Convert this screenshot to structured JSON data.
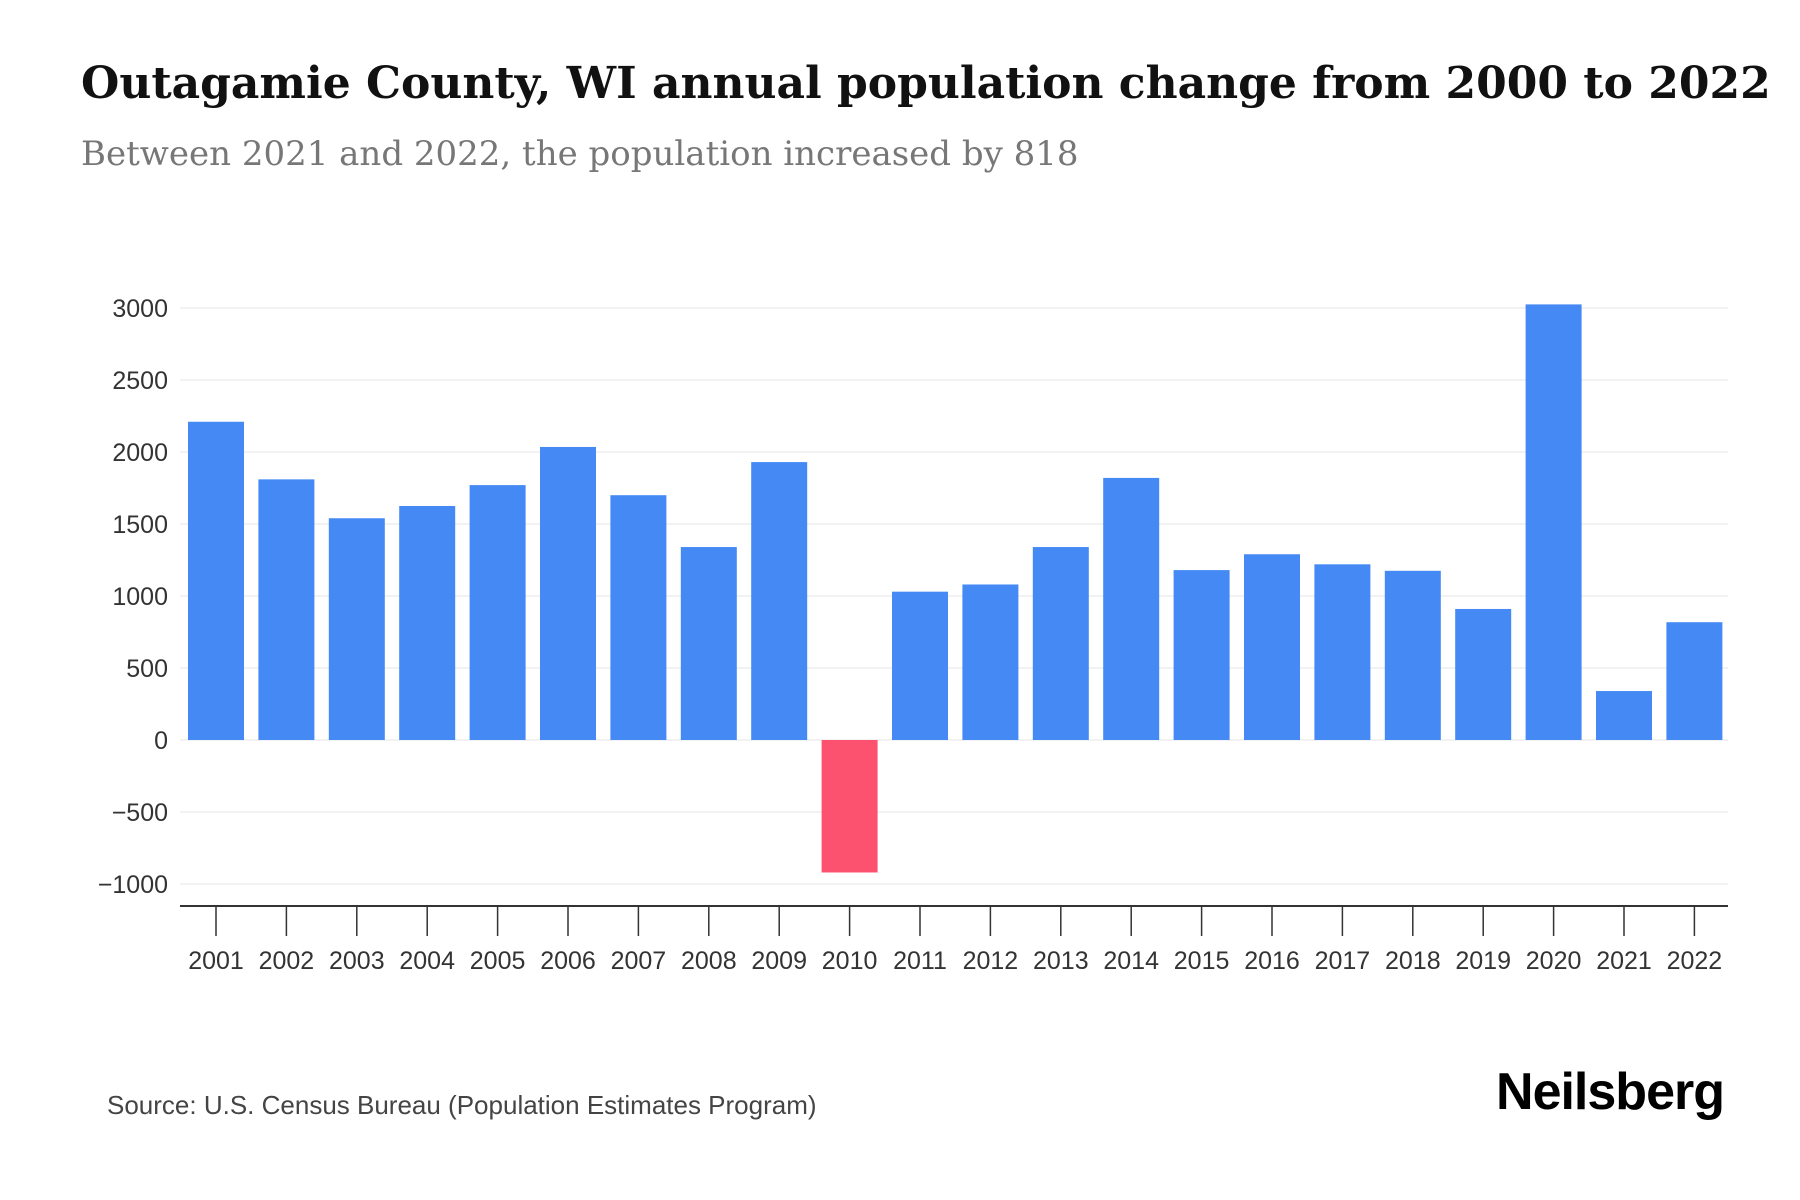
{
  "header": {
    "title": "Outagamie County, WI annual population change from 2000 to 2022",
    "subtitle": "Between 2021 and 2022, the population increased by 818"
  },
  "footer": {
    "source": "Source: U.S. Census Bureau (Population Estimates Program)",
    "brand": "Neilsberg"
  },
  "colors": {
    "positive": "#4589F4",
    "negative": "#FC5270",
    "grid": "#EEEEEE",
    "axis": "#333333",
    "tick_text": "#333333"
  },
  "chart_data": {
    "type": "bar",
    "title": "Outagamie County, WI annual population change from 2000 to 2022",
    "subtitle": "Between 2021 and 2022, the population increased by 818",
    "xlabel": "",
    "ylabel": "",
    "categories": [
      "2001",
      "2002",
      "2003",
      "2004",
      "2005",
      "2006",
      "2007",
      "2008",
      "2009",
      "2010",
      "2011",
      "2012",
      "2013",
      "2014",
      "2015",
      "2016",
      "2017",
      "2018",
      "2019",
      "2020",
      "2021",
      "2022"
    ],
    "values": [
      2210,
      1810,
      1540,
      1625,
      1770,
      2035,
      1700,
      1340,
      1930,
      -920,
      1030,
      1080,
      1340,
      1820,
      1180,
      1290,
      1220,
      1175,
      910,
      3025,
      340,
      818
    ],
    "yticks": [
      3000,
      2500,
      2000,
      1500,
      1000,
      500,
      0,
      -500,
      -1000
    ],
    "ytick_labels": [
      "3000",
      "2500",
      "2000",
      "1500",
      "1000",
      "500",
      "0",
      "−500",
      "−1000"
    ],
    "ylim": [
      -1000,
      3000
    ],
    "grid": true,
    "legend": "none"
  }
}
